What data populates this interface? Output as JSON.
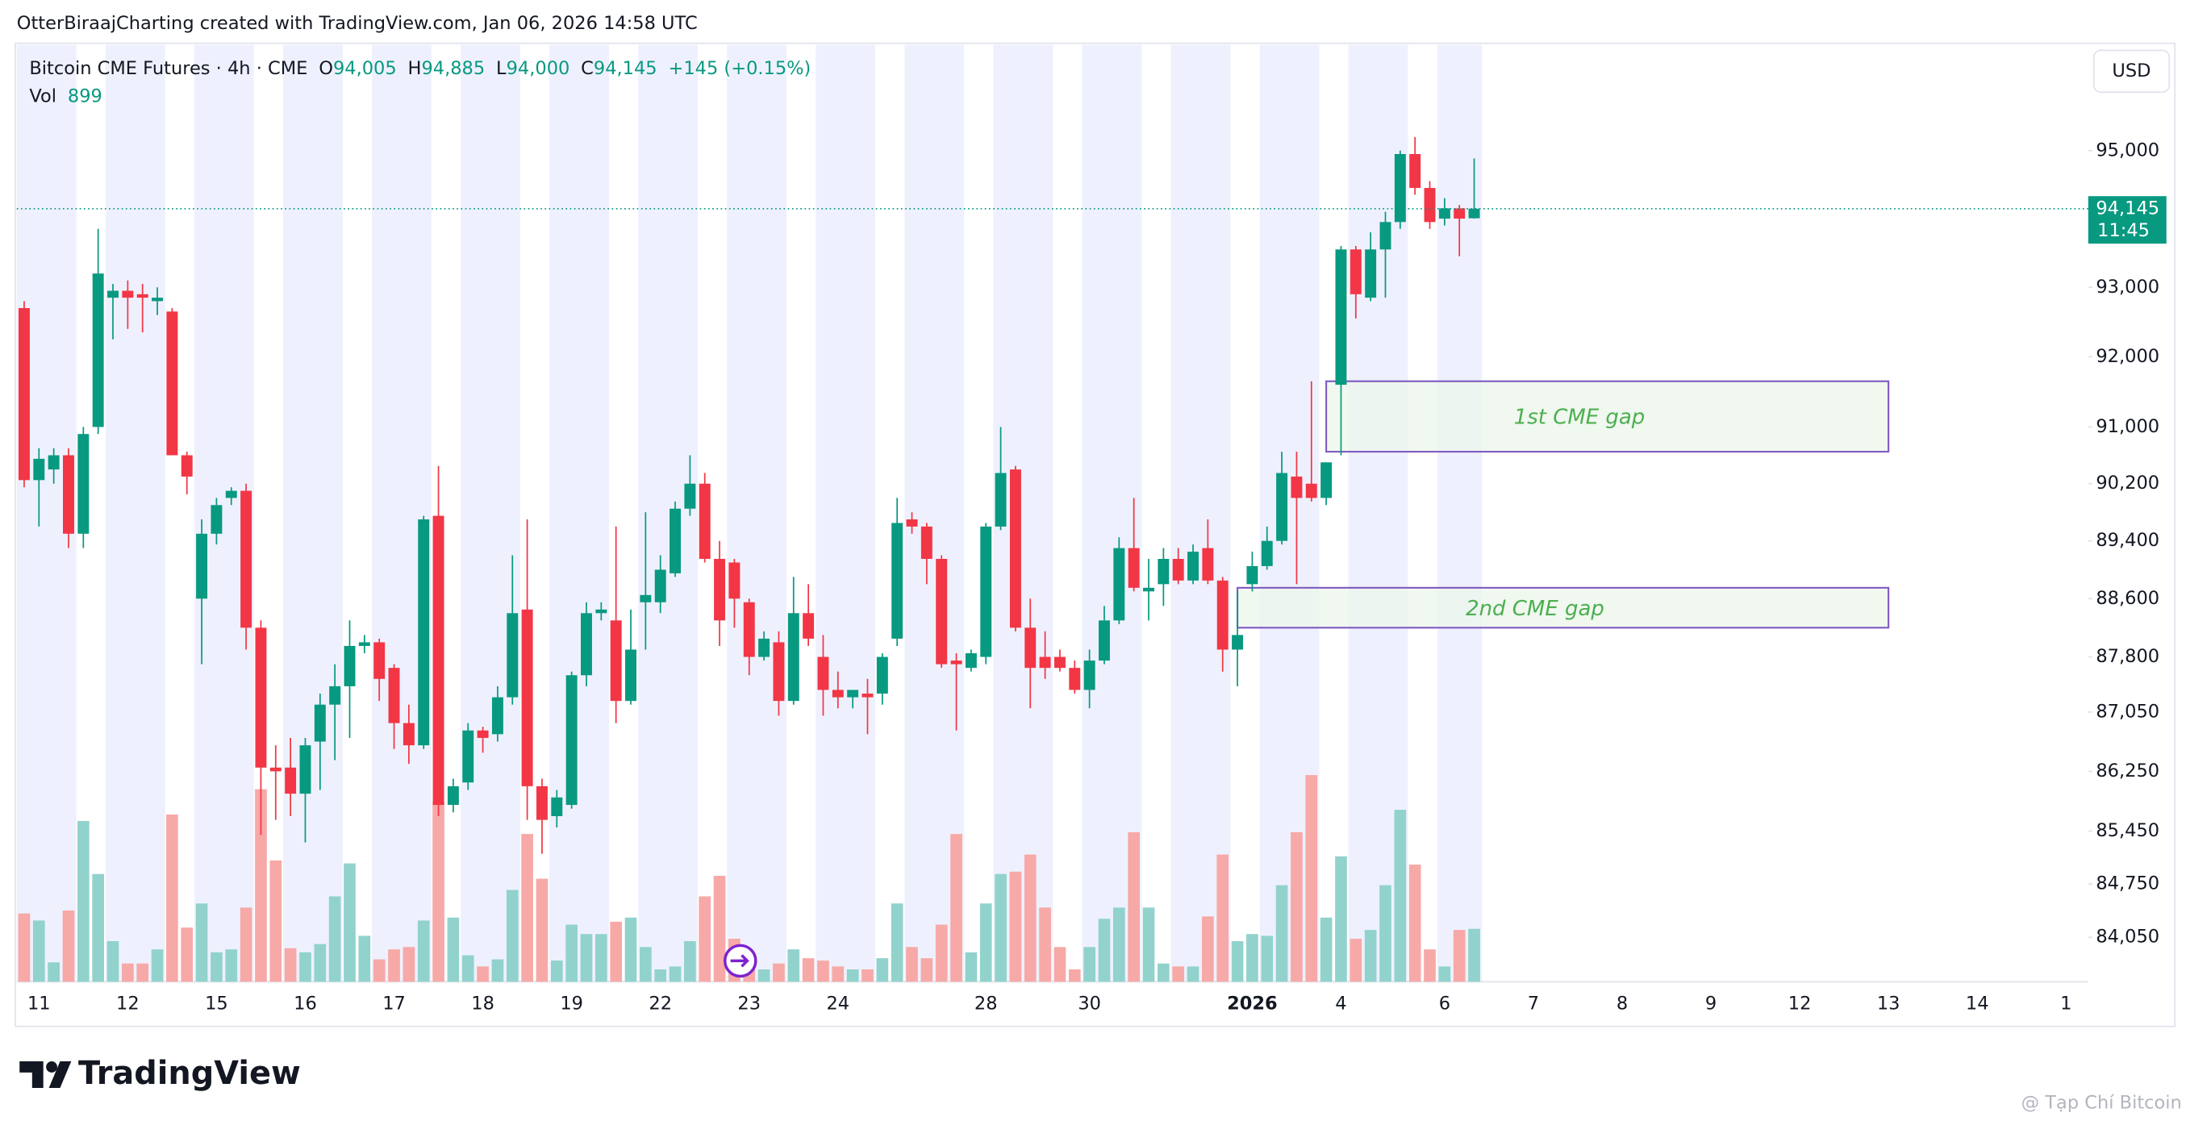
{
  "attribution": "OtterBiraajCharting created with TradingView.com, Jan 06, 2026 14:58 UTC",
  "brand": "TradingView",
  "watermark": "@ Tạp Chí Bitcoin",
  "chart_data": {
    "type": "candlestick",
    "legend": {
      "title": "Bitcoin CME Futures · 4h · CME",
      "items": [
        {
          "label": "O",
          "value": "94,005"
        },
        {
          "label": "H",
          "value": "94,885"
        },
        {
          "label": "L",
          "value": "94,000"
        },
        {
          "label": "C",
          "value": "94,145"
        }
      ],
      "change": "+145 (+0.15%)",
      "vol_label": "Vol",
      "vol": "899"
    },
    "currency": "USD",
    "log_scale": true,
    "grid": false,
    "up_color": "#089981",
    "down_color": "#f23645",
    "volume_up_color": "#92d2cc",
    "volume_down_color": "#f7a9a7",
    "band_color": "#eef1fd",
    "gap_fill": "#ebf6ea",
    "gap_stroke": "#7e57c2",
    "gap_text_color": "#4caf50",
    "ylim": [
      83470,
      96580
    ],
    "yticks": [
      {
        "value": 95000,
        "label": "95,000"
      },
      {
        "value": 93000,
        "label": "93,000"
      },
      {
        "value": 92000,
        "label": "92,000"
      },
      {
        "value": 91000,
        "label": "91,000"
      },
      {
        "value": 90200,
        "label": "90,200"
      },
      {
        "value": 89400,
        "label": "89,400"
      },
      {
        "value": 88600,
        "label": "88,600"
      },
      {
        "value": 87800,
        "label": "87,800"
      },
      {
        "value": 87050,
        "label": "87,050"
      },
      {
        "value": 86250,
        "label": "86,250"
      },
      {
        "value": 85450,
        "label": "85,450"
      },
      {
        "value": 84750,
        "label": "84,750"
      },
      {
        "value": 84050,
        "label": "84,050"
      }
    ],
    "categories": [
      null,
      "11",
      null,
      null,
      null,
      null,
      null,
      "12",
      null,
      null,
      null,
      null,
      null,
      "15",
      null,
      null,
      null,
      null,
      null,
      "16",
      null,
      null,
      null,
      null,
      null,
      "17",
      null,
      null,
      null,
      null,
      null,
      "18",
      null,
      null,
      null,
      null,
      null,
      "19",
      null,
      null,
      null,
      null,
      null,
      "22",
      null,
      null,
      null,
      null,
      null,
      "23",
      null,
      null,
      null,
      null,
      null,
      "24",
      null,
      null,
      null,
      null,
      null,
      null,
      null,
      null,
      null,
      "28",
      null,
      null,
      null,
      null,
      null,
      null,
      "30",
      null,
      null,
      null,
      null,
      null,
      null,
      null,
      null,
      null,
      null,
      "2026",
      null,
      null,
      null,
      null,
      null,
      "4",
      null,
      null,
      null,
      null,
      null,
      null,
      "6",
      null,
      null,
      null,
      null,
      null,
      "7",
      null,
      null,
      null,
      null,
      null,
      "8",
      null,
      null,
      null,
      null,
      null,
      "9",
      null,
      null,
      null,
      null,
      null,
      "12",
      null,
      null,
      null,
      null,
      null,
      "13",
      null,
      null,
      null,
      null,
      null,
      "14",
      null,
      null,
      null,
      null,
      null,
      "1",
      null
    ],
    "ohlc": [
      [
        92700,
        92800,
        90150,
        90250
      ],
      [
        90250,
        90700,
        89600,
        90550
      ],
      [
        90400,
        90700,
        90200,
        90600
      ],
      [
        90600,
        90700,
        89300,
        89500
      ],
      [
        89500,
        91000,
        89300,
        90900
      ],
      [
        91000,
        93850,
        90900,
        93200
      ],
      [
        92850,
        93050,
        92250,
        92950
      ],
      [
        92950,
        93100,
        92400,
        92850
      ],
      [
        92900,
        93050,
        92350,
        92850
      ],
      [
        92800,
        93000,
        92600,
        92850
      ],
      [
        92650,
        92700,
        90600,
        90600
      ],
      [
        90600,
        90650,
        90050,
        90300
      ],
      [
        88600,
        89700,
        87700,
        89500
      ],
      [
        89500,
        90000,
        89350,
        89900
      ],
      [
        90000,
        90150,
        89900,
        90100
      ],
      [
        90100,
        90200,
        87900,
        88200
      ],
      [
        88200,
        88300,
        85400,
        86300
      ],
      [
        86300,
        86600,
        85600,
        86250
      ],
      [
        86300,
        86700,
        85650,
        85950
      ],
      [
        85950,
        86700,
        85300,
        86600
      ],
      [
        86650,
        87300,
        86000,
        87150
      ],
      [
        87150,
        87700,
        86400,
        87400
      ],
      [
        87400,
        88300,
        86700,
        87950
      ],
      [
        87950,
        88100,
        87850,
        88000
      ],
      [
        88000,
        88050,
        87200,
        87500
      ],
      [
        87650,
        87700,
        86550,
        86900
      ],
      [
        86900,
        87150,
        86350,
        86600
      ],
      [
        86600,
        89750,
        86550,
        89700
      ],
      [
        89750,
        90450,
        85650,
        85800
      ],
      [
        85800,
        86150,
        85700,
        86050
      ],
      [
        86100,
        86900,
        86000,
        86800
      ],
      [
        86800,
        86850,
        86500,
        86700
      ],
      [
        86750,
        87400,
        86650,
        87250
      ],
      [
        87250,
        89200,
        87150,
        88400
      ],
      [
        88450,
        89700,
        85600,
        86050
      ],
      [
        86050,
        86150,
        85150,
        85600
      ],
      [
        85650,
        86000,
        85500,
        85900
      ],
      [
        85800,
        87600,
        85750,
        87550
      ],
      [
        87550,
        88550,
        87400,
        88400
      ],
      [
        88400,
        88550,
        88300,
        88450
      ],
      [
        88300,
        89600,
        86900,
        87200
      ],
      [
        87200,
        88450,
        87150,
        87900
      ],
      [
        88550,
        89800,
        87900,
        88650
      ],
      [
        88550,
        89200,
        88400,
        89000
      ],
      [
        88950,
        89950,
        88900,
        89850
      ],
      [
        89850,
        90600,
        89750,
        90200
      ],
      [
        90200,
        90350,
        89100,
        89150
      ],
      [
        89150,
        89400,
        87950,
        88300
      ],
      [
        89100,
        89150,
        88200,
        88600
      ],
      [
        88550,
        88600,
        87550,
        87800
      ],
      [
        87800,
        88150,
        87750,
        88050
      ],
      [
        88000,
        88150,
        87000,
        87200
      ],
      [
        87200,
        88900,
        87150,
        88400
      ],
      [
        88400,
        88800,
        87950,
        88050
      ],
      [
        87800,
        88100,
        87000,
        87350
      ],
      [
        87350,
        87600,
        87100,
        87250
      ],
      [
        87250,
        87350,
        87100,
        87350
      ],
      [
        87300,
        87500,
        86750,
        87250
      ],
      [
        87300,
        87850,
        87150,
        87800
      ],
      [
        88050,
        90000,
        87950,
        89650
      ],
      [
        89700,
        89800,
        89500,
        89600
      ],
      [
        89600,
        89650,
        88800,
        89150
      ],
      [
        89150,
        89200,
        87650,
        87700
      ],
      [
        87750,
        87850,
        86800,
        87700
      ],
      [
        87650,
        87900,
        87600,
        87850
      ],
      [
        87800,
        89650,
        87700,
        89600
      ],
      [
        89600,
        91000,
        89550,
        90350
      ],
      [
        90400,
        90450,
        88150,
        88200
      ],
      [
        88200,
        88600,
        87100,
        87650
      ],
      [
        87800,
        88150,
        87500,
        87650
      ],
      [
        87800,
        87900,
        87600,
        87650
      ],
      [
        87650,
        87750,
        87300,
        87350
      ],
      [
        87350,
        87900,
        87100,
        87750
      ],
      [
        87750,
        88500,
        87700,
        88300
      ],
      [
        88300,
        89450,
        88250,
        89300
      ],
      [
        89300,
        90000,
        88700,
        88750
      ],
      [
        88700,
        89150,
        88300,
        88750
      ],
      [
        88800,
        89300,
        88500,
        89150
      ],
      [
        89150,
        89300,
        88800,
        88850
      ],
      [
        88850,
        89350,
        88800,
        89250
      ],
      [
        89300,
        89700,
        88800,
        88850
      ],
      [
        88850,
        88900,
        87600,
        87900
      ],
      [
        87900,
        88700,
        87400,
        88100
      ],
      [
        88800,
        89250,
        88700,
        89050
      ],
      [
        89050,
        89600,
        89000,
        89400
      ],
      [
        89400,
        90650,
        89350,
        90350
      ],
      [
        90300,
        90650,
        88800,
        90000
      ],
      [
        90200,
        91650,
        89950,
        90000
      ],
      [
        90000,
        90500,
        89900,
        90500
      ],
      [
        91600,
        93600,
        90600,
        93550
      ],
      [
        93550,
        93600,
        92550,
        92900
      ],
      [
        92850,
        93800,
        92800,
        93550
      ],
      [
        93550,
        94100,
        92850,
        93950
      ],
      [
        93950,
        95000,
        93850,
        94950
      ],
      [
        94950,
        95200,
        94350,
        94450
      ],
      [
        94450,
        94550,
        93850,
        93950
      ],
      [
        94000,
        94300,
        93900,
        94150
      ],
      [
        94150,
        94200,
        93450,
        94000
      ],
      [
        94005,
        94885,
        94000,
        94145
      ],
      null,
      null,
      null,
      null,
      null,
      null,
      null,
      null,
      null,
      null,
      null,
      null,
      null,
      null,
      null,
      null,
      null,
      null,
      null,
      null,
      null,
      null,
      null,
      null,
      null,
      null,
      null,
      null,
      null,
      null,
      null,
      null,
      null,
      null,
      null,
      null,
      null,
      null,
      null,
      null,
      null
    ],
    "volume": [
      1160,
      1040,
      330,
      1210,
      2730,
      1830,
      690,
      310,
      310,
      550,
      2840,
      920,
      1330,
      500,
      550,
      1260,
      3270,
      2060,
      570,
      500,
      640,
      1450,
      2010,
      780,
      380,
      550,
      590,
      1040,
      3060,
      1090,
      450,
      260,
      380,
      1560,
      2510,
      1750,
      360,
      970,
      810,
      810,
      1020,
      1090,
      590,
      210,
      260,
      690,
      1450,
      1800,
      730,
      310,
      210,
      310,
      550,
      400,
      360,
      260,
      210,
      210,
      400,
      1330,
      590,
      400,
      970,
      2510,
      500,
      1330,
      1830,
      1870,
      2160,
      1260,
      590,
      210,
      590,
      1070,
      1260,
      2540,
      1260,
      310,
      260,
      260,
      1110,
      2160,
      690,
      810,
      780,
      1640,
      2540,
      3510,
      1090,
      2130,
      730,
      880,
      1640,
      2920,
      1990,
      550,
      260,
      880,
      899,
      null,
      null,
      null,
      null,
      null,
      null,
      null,
      null,
      null,
      null,
      null,
      null,
      null,
      null,
      null,
      null,
      null,
      null,
      null,
      null,
      null,
      null,
      null,
      null,
      null,
      null,
      null,
      null,
      null,
      null,
      null,
      null,
      null,
      null,
      null,
      null,
      null,
      null,
      null,
      null,
      null
    ],
    "gaps": [
      {
        "label": "1st CME gap",
        "top": 91650,
        "bottom": 90650,
        "x": [
          88,
          126
        ]
      },
      {
        "label": "2nd CME gap",
        "top": 88750,
        "bottom": 88200,
        "x": [
          82,
          126
        ]
      }
    ],
    "last_price": 94145,
    "last_price_label": "94,145",
    "countdown": "11:45"
  }
}
